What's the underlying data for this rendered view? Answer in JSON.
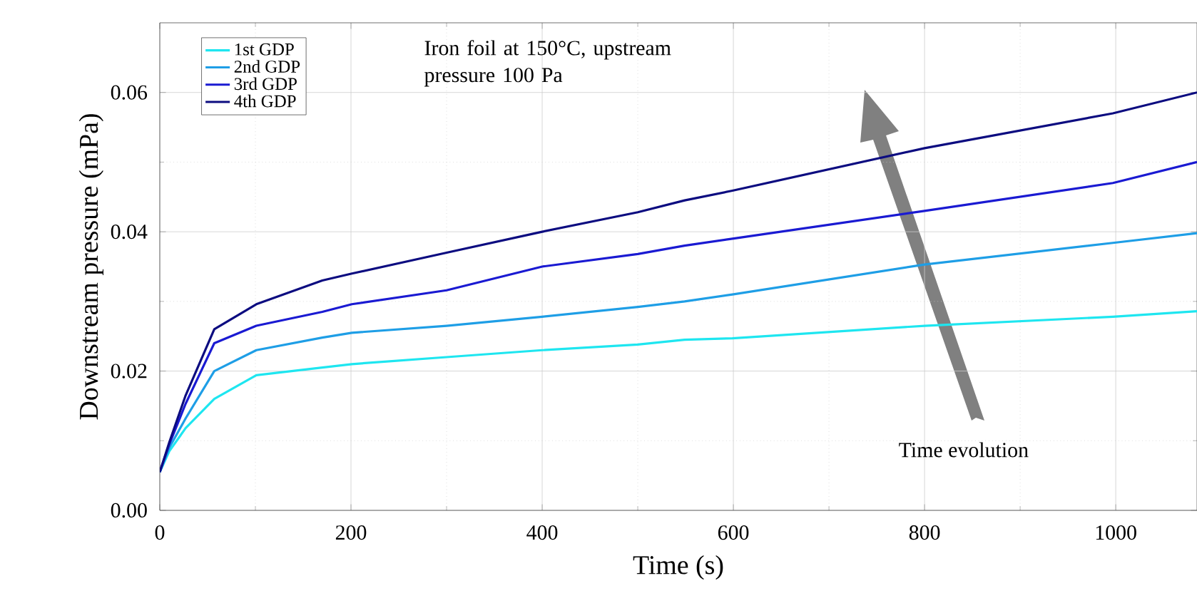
{
  "chart_data": {
    "type": "line",
    "xlabel": "Time (s)",
    "ylabel": "Downstream pressure  (mPa)",
    "x": [
      0,
      10,
      27,
      57,
      101,
      170,
      201,
      300,
      400,
      500,
      549,
      599,
      800,
      997,
      1085
    ],
    "series": [
      {
        "name": "1st GDP",
        "color": "#1ee6f0",
        "values": [
          0.0055,
          0.0085,
          0.0118,
          0.016,
          0.0194,
          0.0205,
          0.021,
          0.022,
          0.023,
          0.0238,
          0.0245,
          0.0247,
          0.0265,
          0.0278,
          0.0286
        ]
      },
      {
        "name": "2nd GDP",
        "color": "#1e9ee6",
        "values": [
          0.0055,
          0.009,
          0.0132,
          0.02,
          0.023,
          0.0248,
          0.0255,
          0.0265,
          0.0278,
          0.0292,
          0.03,
          0.031,
          0.0353,
          0.0384,
          0.0398
        ]
      },
      {
        "name": "3rd GDP",
        "color": "#1a1ad2",
        "values": [
          0.0055,
          0.0095,
          0.0153,
          0.024,
          0.0265,
          0.0285,
          0.0296,
          0.0316,
          0.035,
          0.0368,
          0.038,
          0.039,
          0.043,
          0.047,
          0.05
        ]
      },
      {
        "name": "4th GDP",
        "color": "#0c0c80",
        "values": [
          0.0055,
          0.0098,
          0.0165,
          0.026,
          0.0296,
          0.033,
          0.034,
          0.037,
          0.04,
          0.0428,
          0.0445,
          0.0459,
          0.052,
          0.057,
          0.06
        ]
      }
    ],
    "xlim": [
      0,
      1085
    ],
    "ylim": [
      0,
      0.07
    ],
    "xticks": [
      0,
      200,
      400,
      600,
      800,
      1000
    ],
    "yticks": [
      {
        "value": 0,
        "label": "0.00"
      },
      {
        "value": 0.02,
        "label": "0.02"
      },
      {
        "value": 0.04,
        "label": "0.04"
      },
      {
        "value": 0.06,
        "label": "0.06"
      }
    ],
    "grid": true,
    "legend": "top left",
    "line_style": "solid",
    "marker": "none",
    "annotations": [
      "Iron foil at 150°C, upstream pressure 100 Pa",
      "Time evolution"
    ]
  }
}
